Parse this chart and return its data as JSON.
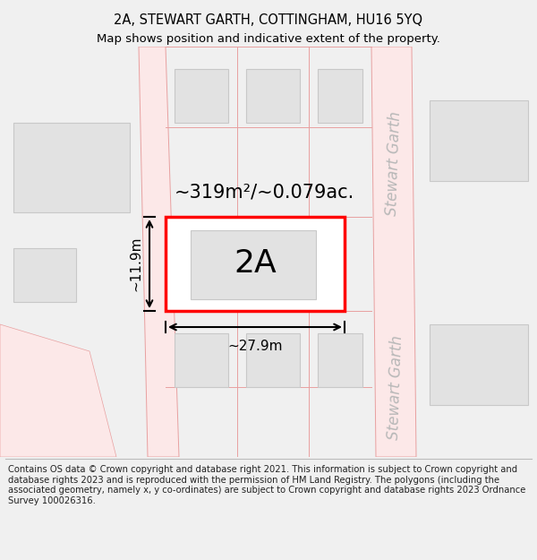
{
  "title_line1": "2A, STEWART GARTH, COTTINGHAM, HU16 5YQ",
  "title_line2": "Map shows position and indicative extent of the property.",
  "footer_text": "Contains OS data © Crown copyright and database right 2021. This information is subject to Crown copyright and database rights 2023 and is reproduced with the permission of HM Land Registry. The polygons (including the associated geometry, namely x, y co-ordinates) are subject to Crown copyright and database rights 2023 Ordnance Survey 100026316.",
  "bg_color": "#f0f0f0",
  "map_bg": "#ffffff",
  "road_fill": "#fce8e8",
  "road_line": "#e8a0a0",
  "building_fill": "#e2e2e2",
  "building_stroke": "#c8c8c8",
  "property_stroke": "#ff0000",
  "road_label": "Stewart Garth",
  "property_label": "2A",
  "area_label": "~319m²/~0.079ac.",
  "width_label": "~27.9m",
  "height_label": "~11.9m",
  "title_fontsize": 10.5,
  "subtitle_fontsize": 9.5,
  "footer_fontsize": 7.2,
  "area_label_fontsize": 15,
  "property_label_fontsize": 26,
  "road_label_fontsize": 12,
  "dim_label_fontsize": 11
}
